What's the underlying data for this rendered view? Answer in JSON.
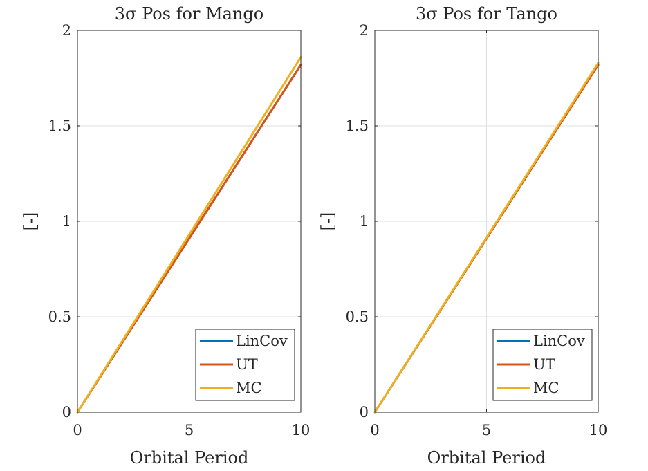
{
  "chart_data": [
    {
      "type": "line",
      "title": "3σ Pos for Mango",
      "xlabel": "Orbital Period",
      "ylabel": "[-]",
      "xlim": [
        0,
        10
      ],
      "ylim": [
        0,
        2
      ],
      "xticks": [
        "0",
        "5",
        "10"
      ],
      "yticks": [
        "0",
        "0.5",
        "1",
        "1.5",
        "2"
      ],
      "grid": true,
      "legend_position": "bottom-right",
      "series": [
        {
          "name": "LinCov",
          "color": "#0072BD",
          "x": [
            0,
            10
          ],
          "y": [
            0,
            1.82
          ]
        },
        {
          "name": "UT",
          "color": "#D95319",
          "x": [
            0,
            10
          ],
          "y": [
            0,
            1.82
          ]
        },
        {
          "name": "MC",
          "color": "#EDB120",
          "x": [
            0,
            10
          ],
          "y": [
            0,
            1.86
          ]
        }
      ]
    },
    {
      "type": "line",
      "title": "3σ Pos for Tango",
      "xlabel": "Orbital Period",
      "ylabel": "[-]",
      "xlim": [
        0,
        10
      ],
      "ylim": [
        0,
        2
      ],
      "xticks": [
        "0",
        "5",
        "10"
      ],
      "yticks": [
        "0",
        "0.5",
        "1",
        "1.5",
        "2"
      ],
      "grid": true,
      "legend_position": "bottom-right",
      "series": [
        {
          "name": "LinCov",
          "color": "#0072BD",
          "x": [
            0,
            10
          ],
          "y": [
            0,
            1.82
          ]
        },
        {
          "name": "UT",
          "color": "#D95319",
          "x": [
            0,
            10
          ],
          "y": [
            0,
            1.82
          ]
        },
        {
          "name": "MC",
          "color": "#EDB120",
          "x": [
            0,
            10
          ],
          "y": [
            0,
            1.83
          ]
        }
      ]
    }
  ]
}
